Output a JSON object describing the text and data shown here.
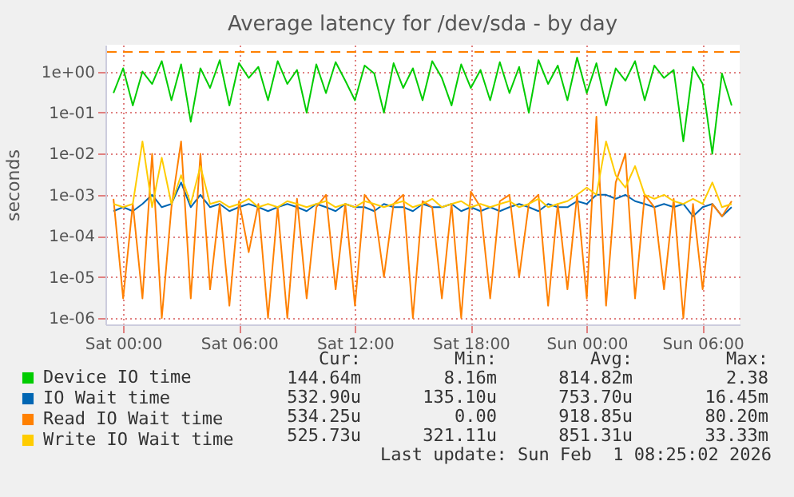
{
  "chart_data": {
    "type": "line",
    "title": "Average latency for /dev/sda - by day",
    "ylabel": "seconds",
    "x": [
      "2026-01-30T23:30",
      "2026-01-31T00:00",
      "2026-01-31T00:30",
      "2026-01-31T01:00",
      "2026-01-31T01:30",
      "2026-01-31T02:00",
      "2026-01-31T02:30",
      "2026-01-31T03:00",
      "2026-01-31T03:30",
      "2026-01-31T04:00",
      "2026-01-31T04:30",
      "2026-01-31T05:00",
      "2026-01-31T05:30",
      "2026-01-31T06:00",
      "2026-01-31T06:30",
      "2026-01-31T07:00",
      "2026-01-31T07:30",
      "2026-01-31T08:00",
      "2026-01-31T08:30",
      "2026-01-31T09:00",
      "2026-01-31T09:30",
      "2026-01-31T10:00",
      "2026-01-31T10:30",
      "2026-01-31T11:00",
      "2026-01-31T11:30",
      "2026-01-31T12:00",
      "2026-01-31T12:30",
      "2026-01-31T13:00",
      "2026-01-31T13:30",
      "2026-01-31T14:00",
      "2026-01-31T14:30",
      "2026-01-31T15:00",
      "2026-01-31T15:30",
      "2026-01-31T16:00",
      "2026-01-31T16:30",
      "2026-01-31T17:00",
      "2026-01-31T17:30",
      "2026-01-31T18:00",
      "2026-01-31T18:30",
      "2026-01-31T19:00",
      "2026-01-31T19:30",
      "2026-01-31T20:00",
      "2026-01-31T20:30",
      "2026-01-31T21:00",
      "2026-01-31T21:30",
      "2026-01-31T22:00",
      "2026-01-31T22:30",
      "2026-01-31T23:00",
      "2026-01-31T23:30",
      "2026-02-01T00:00",
      "2026-02-01T00:30",
      "2026-02-01T01:00",
      "2026-02-01T01:30",
      "2026-02-01T02:00",
      "2026-02-01T02:30",
      "2026-02-01T03:00",
      "2026-02-01T03:30",
      "2026-02-01T04:00",
      "2026-02-01T04:30",
      "2026-02-01T05:00",
      "2026-02-01T05:30",
      "2026-02-01T06:00",
      "2026-02-01T06:30",
      "2026-02-01T07:00",
      "2026-02-01T07:30"
    ],
    "series": [
      {
        "name": "Device IO time",
        "color": "#00cc00",
        "values": [
          0.3,
          1.2,
          0.15,
          1.0,
          0.5,
          1.8,
          0.2,
          1.5,
          0.06,
          1.2,
          0.4,
          1.9,
          0.15,
          1.6,
          0.7,
          1.3,
          0.2,
          1.8,
          0.5,
          1.1,
          0.1,
          1.5,
          0.3,
          1.7,
          0.6,
          0.2,
          1.4,
          0.9,
          0.1,
          1.6,
          0.4,
          1.2,
          0.2,
          1.8,
          0.7,
          0.15,
          1.5,
          0.4,
          1.1,
          0.2,
          1.7,
          0.3,
          1.3,
          0.1,
          1.9,
          0.5,
          1.4,
          0.2,
          2.2,
          0.3,
          1.6,
          0.15,
          1.2,
          0.6,
          1.8,
          0.2,
          1.4,
          0.7,
          1.1,
          0.02,
          1.3,
          0.5,
          0.01,
          0.9,
          0.15
        ]
      },
      {
        "name": "IO Wait time",
        "color": "#0066b3",
        "values": [
          0.0004,
          0.0005,
          0.0004,
          0.0006,
          0.001,
          0.0005,
          0.0006,
          0.002,
          0.0005,
          0.001,
          0.0005,
          0.0006,
          0.0004,
          0.0005,
          0.0006,
          0.0005,
          0.0004,
          0.0005,
          0.0006,
          0.0005,
          0.0004,
          0.0006,
          0.0005,
          0.0004,
          0.0006,
          0.0005,
          0.0005,
          0.0004,
          0.0006,
          0.0005,
          0.0005,
          0.0004,
          0.0006,
          0.0005,
          0.0005,
          0.0006,
          0.0004,
          0.0005,
          0.0004,
          0.0005,
          0.0004,
          0.0005,
          0.0006,
          0.0005,
          0.0004,
          0.0006,
          0.0005,
          0.0005,
          0.0007,
          0.0006,
          0.001,
          0.001,
          0.0008,
          0.001,
          0.0007,
          0.0006,
          0.0005,
          0.0006,
          0.0005,
          0.0006,
          0.0003,
          0.0005,
          0.0006,
          0.0003,
          0.0005
        ]
      },
      {
        "name": "Read IO Wait time",
        "color": "#ff8000",
        "values": [
          0.0008,
          3e-06,
          0.0006,
          3e-06,
          0.01,
          1e-06,
          0.0005,
          0.02,
          3e-06,
          0.01,
          5e-06,
          0.0006,
          2e-06,
          0.0007,
          4e-05,
          0.0006,
          1e-06,
          0.0005,
          1e-06,
          0.0008,
          3e-06,
          0.0005,
          0.001,
          5e-06,
          0.0006,
          2e-06,
          0.001,
          0.0005,
          1e-05,
          0.0006,
          0.001,
          1e-06,
          0.0007,
          0.0005,
          3e-06,
          0.0006,
          1e-06,
          0.0012,
          0.0005,
          3e-06,
          0.0007,
          0.001,
          1e-05,
          0.0006,
          0.001,
          2e-06,
          0.0006,
          5e-06,
          0.001,
          3e-06,
          0.08,
          2e-06,
          0.002,
          0.01,
          3e-06,
          0.001,
          0.0005,
          5e-06,
          0.0008,
          1e-06,
          0.0006,
          5e-06,
          0.0006,
          0.0003,
          0.0007
        ]
      },
      {
        "name": "Write IO Wait time",
        "color": "#ffcc00",
        "values": [
          0.0006,
          0.0005,
          0.0006,
          0.02,
          0.0005,
          0.008,
          0.0006,
          0.003,
          0.0006,
          0.005,
          0.0006,
          0.0007,
          0.0005,
          0.0006,
          0.0008,
          0.0005,
          0.0006,
          0.0005,
          0.0007,
          0.0006,
          0.0005,
          0.0006,
          0.0007,
          0.0005,
          0.0006,
          0.0005,
          0.0007,
          0.0006,
          0.0005,
          0.0006,
          0.0007,
          0.0005,
          0.0006,
          0.0008,
          0.0005,
          0.0006,
          0.0007,
          0.0005,
          0.0006,
          0.0005,
          0.0006,
          0.0007,
          0.0005,
          0.0006,
          0.0008,
          0.0005,
          0.0006,
          0.0007,
          0.001,
          0.0015,
          0.001,
          0.02,
          0.003,
          0.0015,
          0.005,
          0.001,
          0.0008,
          0.001,
          0.0007,
          0.0006,
          0.0008,
          0.0006,
          0.002,
          0.0005,
          0.0006
        ]
      }
    ],
    "log": true,
    "ylim": [
      7e-07,
      4.5
    ],
    "yticks": [
      {
        "value": 1e-06,
        "label": "1e-06"
      },
      {
        "value": 1e-05,
        "label": "1e-05"
      },
      {
        "value": 0.0001,
        "label": "1e-04"
      },
      {
        "value": 0.001,
        "label": "1e-03"
      },
      {
        "value": 0.01,
        "label": "1e-02"
      },
      {
        "value": 0.1,
        "label": "1e-01"
      },
      {
        "value": 1,
        "label": "1e+00"
      }
    ],
    "xlim": [
      "2026-01-30T23:05",
      "2026-02-01T07:55"
    ],
    "xticks": [
      {
        "value": "2026-01-31T00:00",
        "label": "Sat 00:00"
      },
      {
        "value": "2026-01-31T06:00",
        "label": "Sat 06:00"
      },
      {
        "value": "2026-01-31T12:00",
        "label": "Sat 12:00"
      },
      {
        "value": "2026-01-31T18:00",
        "label": "Sat 18:00"
      },
      {
        "value": "2026-02-01T00:00",
        "label": "Sun 00:00"
      },
      {
        "value": "2026-02-01T06:00",
        "label": "Sun 06:00"
      }
    ],
    "ref_lines": [
      {
        "axis": "y",
        "value": 3,
        "color": "#ff8000",
        "line_style": "dashed"
      }
    ],
    "grid": true,
    "legend": "bottom",
    "annotations": [
      "Cur:",
      "Min:",
      "Avg:",
      "Max:",
      "144.64m",
      "8.16m",
      "814.82m",
      "2.38",
      "532.90u",
      "135.10u",
      "753.70u",
      "16.45m",
      "534.25u",
      "0.00",
      "918.85u",
      "80.20m",
      "525.73u",
      "321.11u",
      "851.31u",
      "33.33m",
      "Last update: Sun Feb  1 08:25:02 2026"
    ]
  }
}
